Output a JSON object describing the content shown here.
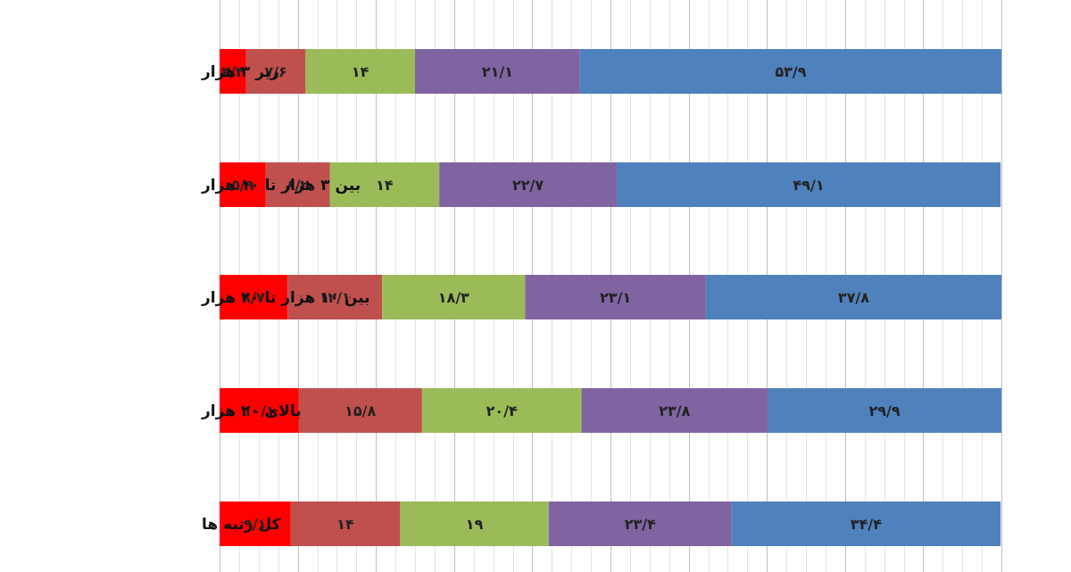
{
  "chart_data": {
    "type": "bar",
    "orientation": "horizontal",
    "stacked": "percent",
    "grid": true,
    "legend": "none",
    "xlim": [
      0,
      100
    ],
    "categories": [
      "زیر ۳ هزار",
      "بین ۳ هزار تا ۱۰ هزار",
      "بین ۱۰ هزار تا ۲۰ هزار",
      "بالای ۲۰ هزار",
      "کل رتبه ها"
    ],
    "series": [
      {
        "color": "#ff0000",
        "values": [
          3.4,
          5.9,
          8.7,
          10.1,
          9.1
        ],
        "labels": [
          "۳/۴",
          "۵/۹",
          "۸/۷",
          "۱۰/۱",
          "۹/۱"
        ]
      },
      {
        "color": "#c0504d",
        "values": [
          7.6,
          8.2,
          12.1,
          15.8,
          14
        ],
        "labels": [
          "۷/۶",
          "۸/۲",
          "۱۲/۱",
          "۱۵/۸",
          "۱۴"
        ]
      },
      {
        "color": "#9bbb59",
        "values": [
          14,
          14,
          18.3,
          20.4,
          19
        ],
        "labels": [
          "۱۴",
          "۱۴",
          "۱۸/۳",
          "۲۰/۴",
          "۱۹"
        ]
      },
      {
        "color": "#8064a2",
        "values": [
          21.1,
          22.7,
          23.1,
          23.8,
          23.4
        ],
        "labels": [
          "۲۱/۱",
          "۲۲/۷",
          "۲۳/۱",
          "۲۳/۸",
          "۲۳/۴"
        ]
      },
      {
        "color": "#4f81bd",
        "values": [
          53.9,
          49.1,
          37.8,
          29.9,
          34.4
        ],
        "labels": [
          "۵۳/۹",
          "۴۹/۱",
          "۳۷/۸",
          "۲۹/۹",
          "۳۴/۴"
        ]
      }
    ]
  }
}
